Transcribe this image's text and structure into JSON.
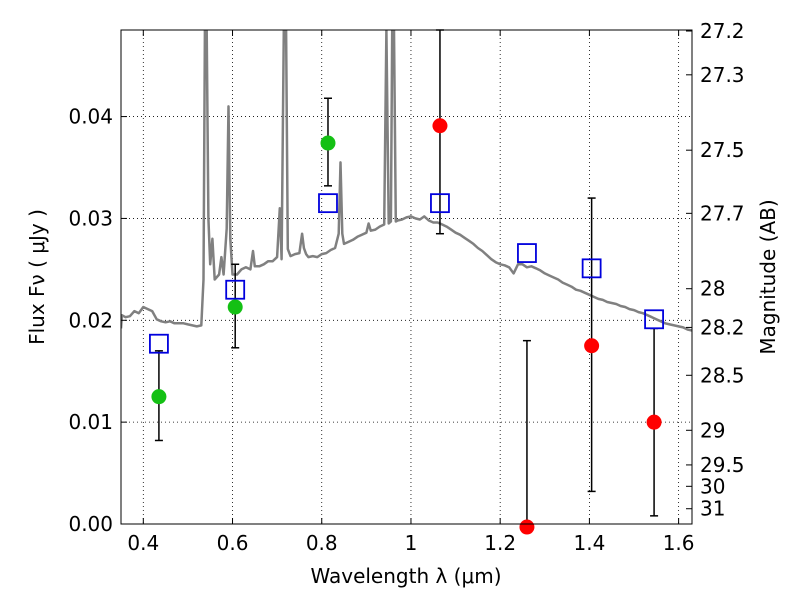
{
  "chart_data": {
    "type": "scatter",
    "xlabel": "Wavelength  λ (μm)",
    "ylabel": "Flux  Fν  ( μJy )",
    "ylabel_right": "Magnitude (AB)",
    "xlim": [
      0.35,
      1.63
    ],
    "ylim": [
      0.0,
      0.0485
    ],
    "xticks": [
      0.4,
      0.6,
      0.8,
      1.0,
      1.2,
      1.4,
      1.6
    ],
    "xtick_labels": [
      "0.4",
      "0.6",
      "0.8",
      "1",
      "1.2",
      "1.4",
      "1.6"
    ],
    "yticks": [
      0.0,
      0.01,
      0.02,
      0.03,
      0.04
    ],
    "ytick_labels": [
      "0.00",
      "0.01",
      "0.02",
      "0.03",
      "0.04"
    ],
    "right_ticks": [
      {
        "label": "27.2",
        "flux": 0.0484
      },
      {
        "label": "27.3",
        "flux": 0.0441
      },
      {
        "label": "27.5",
        "flux": 0.0367
      },
      {
        "label": "27.7",
        "flux": 0.0305
      },
      {
        "label": "28",
        "flux": 0.0231
      },
      {
        "label": "28.2",
        "flux": 0.0193
      },
      {
        "label": "28.5",
        "flux": 0.0146
      },
      {
        "label": "29",
        "flux": 0.0092
      },
      {
        "label": "29.5",
        "flux": 0.0058
      },
      {
        "label": "30",
        "flux": 0.0037
      },
      {
        "label": "31",
        "flux": 0.0015
      }
    ],
    "grid": true,
    "colors": {
      "model": "#808080",
      "detection": "#14c014",
      "upper": "#ff0000",
      "model_phot": "#0000dd",
      "errorbar": "#000000"
    },
    "series": [
      {
        "type": "line",
        "points": [
          [
            0.35,
            0.0192
          ],
          [
            0.352,
            0.0205
          ],
          [
            0.36,
            0.0203
          ],
          [
            0.37,
            0.0204
          ],
          [
            0.38,
            0.0209
          ],
          [
            0.39,
            0.0207
          ],
          [
            0.4,
            0.0213
          ],
          [
            0.41,
            0.0211
          ],
          [
            0.42,
            0.0209
          ],
          [
            0.43,
            0.0201
          ],
          [
            0.44,
            0.0199
          ],
          [
            0.45,
            0.0198
          ],
          [
            0.46,
            0.0199
          ],
          [
            0.47,
            0.0197
          ],
          [
            0.48,
            0.0197
          ],
          [
            0.49,
            0.0197
          ],
          [
            0.5,
            0.0196
          ],
          [
            0.51,
            0.0195
          ],
          [
            0.52,
            0.0194
          ],
          [
            0.53,
            0.0195
          ],
          [
            0.535,
            0.024
          ],
          [
            0.538,
            0.0485
          ],
          [
            0.542,
            0.0485
          ],
          [
            0.546,
            0.03
          ],
          [
            0.55,
            0.0255
          ],
          [
            0.555,
            0.028
          ],
          [
            0.56,
            0.024
          ],
          [
            0.57,
            0.0245
          ],
          [
            0.575,
            0.0262
          ],
          [
            0.58,
            0.0245
          ],
          [
            0.587,
            0.029
          ],
          [
            0.591,
            0.041
          ],
          [
            0.595,
            0.028
          ],
          [
            0.6,
            0.0245
          ],
          [
            0.61,
            0.0245
          ],
          [
            0.62,
            0.025
          ],
          [
            0.63,
            0.0252
          ],
          [
            0.64,
            0.025
          ],
          [
            0.646,
            0.0268
          ],
          [
            0.65,
            0.0253
          ],
          [
            0.66,
            0.0253
          ],
          [
            0.67,
            0.0255
          ],
          [
            0.68,
            0.0258
          ],
          [
            0.69,
            0.0258
          ],
          [
            0.7,
            0.0262
          ],
          [
            0.706,
            0.031
          ],
          [
            0.71,
            0.026
          ],
          [
            0.715,
            0.0485
          ],
          [
            0.72,
            0.0485
          ],
          [
            0.724,
            0.027
          ],
          [
            0.73,
            0.0263
          ],
          [
            0.74,
            0.0265
          ],
          [
            0.75,
            0.0266
          ],
          [
            0.756,
            0.0285
          ],
          [
            0.76,
            0.0271
          ],
          [
            0.765,
            0.0265
          ],
          [
            0.77,
            0.0262
          ],
          [
            0.78,
            0.0263
          ],
          [
            0.79,
            0.0262
          ],
          [
            0.8,
            0.0265
          ],
          [
            0.81,
            0.0266
          ],
          [
            0.82,
            0.0269
          ],
          [
            0.83,
            0.0271
          ],
          [
            0.838,
            0.0285
          ],
          [
            0.842,
            0.0355
          ],
          [
            0.846,
            0.0285
          ],
          [
            0.85,
            0.0275
          ],
          [
            0.86,
            0.0277
          ],
          [
            0.87,
            0.0279
          ],
          [
            0.88,
            0.0282
          ],
          [
            0.89,
            0.0284
          ],
          [
            0.9,
            0.0286
          ],
          [
            0.905,
            0.0295
          ],
          [
            0.91,
            0.0288
          ],
          [
            0.92,
            0.0289
          ],
          [
            0.93,
            0.0292
          ],
          [
            0.94,
            0.0294
          ],
          [
            0.945,
            0.0485
          ],
          [
            0.95,
            0.0295
          ],
          [
            0.955,
            0.0297
          ],
          [
            0.958,
            0.0485
          ],
          [
            0.962,
            0.0485
          ],
          [
            0.966,
            0.0297
          ],
          [
            0.97,
            0.0298
          ],
          [
            0.98,
            0.0299
          ],
          [
            0.99,
            0.0301
          ],
          [
            1.0,
            0.0302
          ],
          [
            1.01,
            0.03
          ],
          [
            1.02,
            0.0299
          ],
          [
            1.03,
            0.0302
          ],
          [
            1.04,
            0.0298
          ],
          [
            1.05,
            0.0296
          ],
          [
            1.06,
            0.0296
          ],
          [
            1.07,
            0.0294
          ],
          [
            1.08,
            0.0292
          ],
          [
            1.09,
            0.0289
          ],
          [
            1.1,
            0.0286
          ],
          [
            1.11,
            0.0284
          ],
          [
            1.12,
            0.0281
          ],
          [
            1.13,
            0.0278
          ],
          [
            1.14,
            0.0275
          ],
          [
            1.15,
            0.0271
          ],
          [
            1.16,
            0.0268
          ],
          [
            1.17,
            0.0264
          ],
          [
            1.18,
            0.026
          ],
          [
            1.19,
            0.0257
          ],
          [
            1.2,
            0.0255
          ],
          [
            1.21,
            0.0254
          ],
          [
            1.22,
            0.0252
          ],
          [
            1.23,
            0.0246
          ],
          [
            1.24,
            0.0255
          ],
          [
            1.25,
            0.0255
          ],
          [
            1.26,
            0.0252
          ],
          [
            1.27,
            0.0253
          ],
          [
            1.28,
            0.0251
          ],
          [
            1.29,
            0.0249
          ],
          [
            1.3,
            0.0246
          ],
          [
            1.31,
            0.0244
          ],
          [
            1.32,
            0.0242
          ],
          [
            1.33,
            0.024
          ],
          [
            1.34,
            0.0237
          ],
          [
            1.35,
            0.0235
          ],
          [
            1.36,
            0.0233
          ],
          [
            1.37,
            0.023
          ],
          [
            1.38,
            0.0229
          ],
          [
            1.39,
            0.0227
          ],
          [
            1.4,
            0.0225
          ],
          [
            1.41,
            0.0223
          ],
          [
            1.42,
            0.0221
          ],
          [
            1.43,
            0.022
          ],
          [
            1.44,
            0.0218
          ],
          [
            1.45,
            0.0217
          ],
          [
            1.46,
            0.0216
          ],
          [
            1.47,
            0.0214
          ],
          [
            1.48,
            0.0213
          ],
          [
            1.49,
            0.0211
          ],
          [
            1.5,
            0.021
          ],
          [
            1.51,
            0.0208
          ],
          [
            1.52,
            0.0207
          ],
          [
            1.53,
            0.0205
          ],
          [
            1.54,
            0.0203
          ],
          [
            1.55,
            0.0201
          ],
          [
            1.56,
            0.0199
          ],
          [
            1.57,
            0.0197
          ],
          [
            1.58,
            0.0196
          ],
          [
            1.59,
            0.0195
          ],
          [
            1.6,
            0.0194
          ],
          [
            1.61,
            0.0193
          ],
          [
            1.62,
            0.0191
          ],
          [
            1.63,
            0.019
          ]
        ]
      },
      {
        "type": "scatter",
        "points": [
          {
            "x": 0.435,
            "y": 0.0125,
            "yerr": [
              0.0082,
              0.017
            ]
          },
          {
            "x": 0.606,
            "y": 0.0213,
            "yerr": [
              0.0173,
              0.0255
            ]
          },
          {
            "x": 0.814,
            "y": 0.0374,
            "yerr": [
              0.0332,
              0.0418
            ]
          }
        ]
      },
      {
        "type": "scatter",
        "points": [
          {
            "x": 1.065,
            "y": 0.0391,
            "yerr": [
              0.0285,
              0.0485
            ]
          },
          {
            "x": 1.26,
            "y": -0.0003,
            "yerr": [
              0.0,
              0.018
            ]
          },
          {
            "x": 1.405,
            "y": 0.0175,
            "yerr": [
              0.0032,
              0.032
            ]
          },
          {
            "x": 1.545,
            "y": 0.01,
            "yerr": [
              0.0008,
              0.0192
            ]
          }
        ]
      },
      {
        "type": "scatter",
        "marker": "square",
        "points": [
          {
            "x": 0.435,
            "y": 0.0177
          },
          {
            "x": 0.606,
            "y": 0.023
          },
          {
            "x": 0.814,
            "y": 0.0315
          },
          {
            "x": 1.065,
            "y": 0.0315
          },
          {
            "x": 1.26,
            "y": 0.0266
          },
          {
            "x": 1.405,
            "y": 0.0251
          },
          {
            "x": 1.545,
            "y": 0.0201
          }
        ]
      }
    ]
  }
}
